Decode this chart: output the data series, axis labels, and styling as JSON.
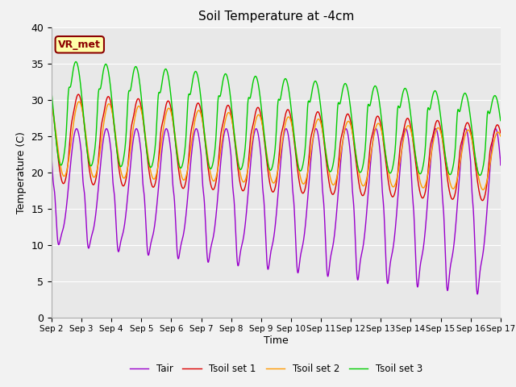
{
  "title": "Soil Temperature at -4cm",
  "xlabel": "Time",
  "ylabel": "Temperature (C)",
  "ylim": [
    0,
    40
  ],
  "yticks": [
    0,
    5,
    10,
    15,
    20,
    25,
    30,
    35,
    40
  ],
  "xtick_labels": [
    "Sep 2",
    "Sep 3",
    "Sep 4",
    "Sep 5",
    "Sep 6",
    "Sep 7",
    "Sep 8",
    "Sep 9",
    "Sep 10",
    "Sep 11",
    "Sep 12",
    "Sep 13",
    "Sep 14",
    "Sep 15",
    "Sep 16",
    "Sep 17"
  ],
  "colors": {
    "Tair": "#9900cc",
    "Tsoil1": "#dd0000",
    "Tsoil2": "#ff9900",
    "Tsoil3": "#00cc00"
  },
  "legend_labels": [
    "Tair",
    "Tsoil set 1",
    "Tsoil set 2",
    "Tsoil set 3"
  ],
  "annotation_text": "VR_met",
  "annotation_color": "#8B0000",
  "annotation_bg": "#ffffaa",
  "plot_bg_color": "#e8e8e8",
  "fig_bg_color": "#f2f2f2",
  "grid_color": "#ffffff",
  "n_days": 15,
  "pts_per_day": 144
}
